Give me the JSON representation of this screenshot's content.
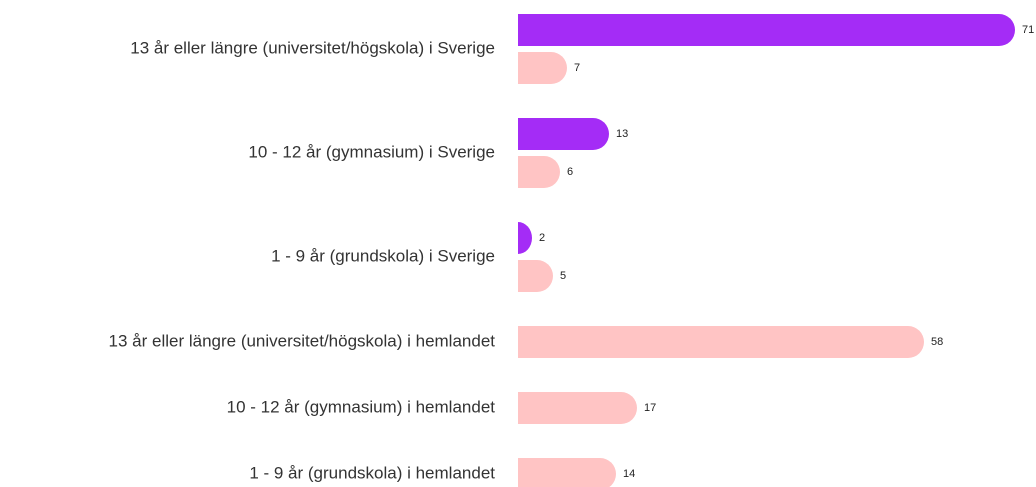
{
  "chart_data": {
    "type": "bar",
    "orientation": "horizontal",
    "categories": [
      "13 år eller längre (universitet/högskola) i Sverige",
      "10 - 12 år (gymnasium) i Sverige",
      "1 - 9 år (grundskola) i Sverige",
      "13 år eller längre (universitet/högskola) i hemlandet",
      "10 - 12 år (gymnasium) i hemlandet",
      "1 - 9 år (grundskola) i hemlandet"
    ],
    "series": [
      {
        "color": "#a42cf6",
        "values": [
          71,
          13,
          2,
          null,
          null,
          null
        ]
      },
      {
        "color": "#ffc4c4",
        "values": [
          7,
          6,
          5,
          58,
          17,
          14
        ]
      }
    ]
  }
}
